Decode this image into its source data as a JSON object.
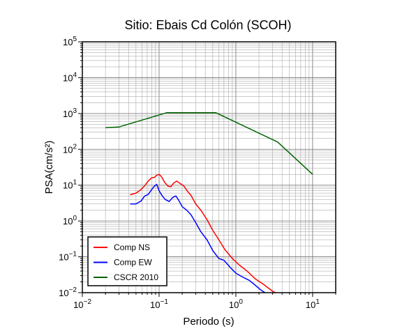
{
  "chart_data": {
    "type": "line",
    "title": "Sitio: Ebais Cd Colón (SCOH)",
    "xlabel": "Periodo (s)",
    "ylabel": "PSA(cm/s²)",
    "x_scale": "log",
    "y_scale": "log",
    "xlim": [
      0.01,
      20
    ],
    "ylim": [
      0.01,
      100000
    ],
    "x_ticks": [
      {
        "value": 0.01,
        "base": "10",
        "exp": "−2"
      },
      {
        "value": 0.1,
        "base": "10",
        "exp": "−1"
      },
      {
        "value": 1,
        "base": "10",
        "exp": "0"
      },
      {
        "value": 10,
        "base": "10",
        "exp": "1"
      }
    ],
    "y_ticks": [
      {
        "value": 0.01,
        "base": "10",
        "exp": "−2"
      },
      {
        "value": 0.1,
        "base": "10",
        "exp": "−1"
      },
      {
        "value": 1,
        "base": "10",
        "exp": "0"
      },
      {
        "value": 10,
        "base": "10",
        "exp": "1"
      },
      {
        "value": 100,
        "base": "10",
        "exp": "2"
      },
      {
        "value": 1000,
        "base": "10",
        "exp": "3"
      },
      {
        "value": 10000,
        "base": "10",
        "exp": "4"
      },
      {
        "value": 100000,
        "base": "10",
        "exp": "5"
      }
    ],
    "grid": true,
    "legend_position": "bottom-left",
    "series": [
      {
        "name": "Comp NS",
        "color": "#ff0000",
        "x": [
          0.042,
          0.05,
          0.058,
          0.065,
          0.072,
          0.08,
          0.087,
          0.093,
          0.1,
          0.108,
          0.118,
          0.13,
          0.142,
          0.155,
          0.17,
          0.19,
          0.21,
          0.235,
          0.26,
          0.3,
          0.35,
          0.42,
          0.5,
          0.6,
          0.72,
          0.9,
          1.1,
          1.4,
          1.8,
          2.3,
          3.0,
          3.6
        ],
        "y": [
          5.4,
          6.0,
          7.5,
          9.7,
          13.0,
          16.0,
          16.5,
          19.0,
          20.0,
          17.0,
          12.0,
          9.5,
          9.0,
          11.5,
          13.0,
          11.0,
          9.5,
          6.7,
          5.2,
          3.0,
          2.0,
          1.1,
          0.55,
          0.3,
          0.16,
          0.09,
          0.06,
          0.04,
          0.024,
          0.017,
          0.011,
          0.009
        ]
      },
      {
        "name": "Comp EW",
        "color": "#0000ff",
        "x": [
          0.042,
          0.05,
          0.058,
          0.065,
          0.072,
          0.08,
          0.087,
          0.093,
          0.1,
          0.11,
          0.12,
          0.135,
          0.15,
          0.165,
          0.18,
          0.2,
          0.23,
          0.26,
          0.3,
          0.35,
          0.42,
          0.5,
          0.6,
          0.7,
          0.85,
          1.0,
          1.2,
          1.5,
          1.8,
          2.1,
          2.4
        ],
        "y": [
          3.0,
          3.0,
          3.6,
          5.0,
          5.5,
          7.5,
          9.5,
          10.5,
          7.0,
          5.0,
          4.0,
          3.5,
          4.5,
          5.0,
          3.8,
          2.5,
          2.0,
          1.5,
          0.9,
          0.5,
          0.3,
          0.15,
          0.09,
          0.08,
          0.05,
          0.035,
          0.028,
          0.022,
          0.016,
          0.012,
          0.01
        ]
      },
      {
        "name": "CSCR 2010",
        "color": "#006400",
        "x": [
          0.02,
          0.03,
          0.125,
          0.55,
          3.5,
          10
        ],
        "y": [
          400,
          420,
          1050,
          1050,
          160,
          20
        ]
      }
    ]
  }
}
